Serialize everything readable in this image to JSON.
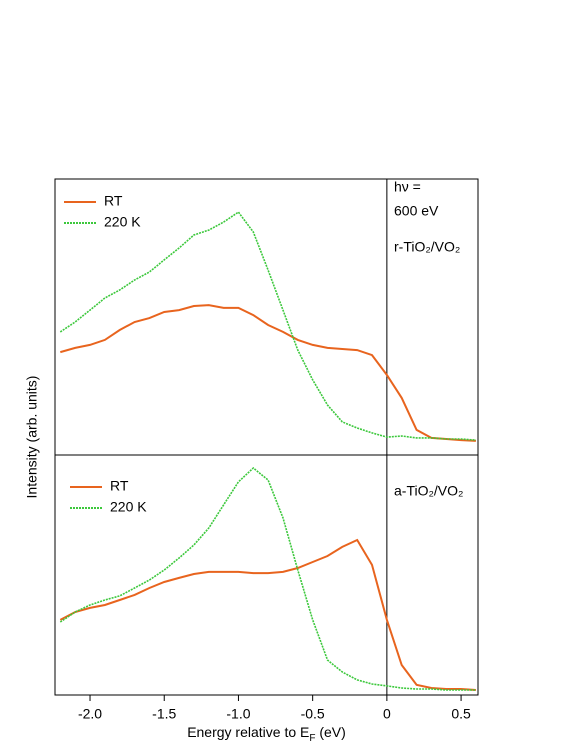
{
  "chart_data": [
    {
      "type": "line",
      "ylabel": "Intensity (arb. units)",
      "legend": "upper left",
      "annotations": [
        "hν =",
        "600 eV",
        "r-TiO₂/VO₂"
      ],
      "vline": 0,
      "xlim": [
        -2.236,
        0.614
      ],
      "ylim": [
        0,
        100
      ],
      "x": [
        -2.2,
        -2.1,
        -2.0,
        -1.9,
        -1.8,
        -1.7,
        -1.6,
        -1.5,
        -1.4,
        -1.3,
        -1.2,
        -1.1,
        -1.0,
        -0.9,
        -0.8,
        -0.7,
        -0.6,
        -0.5,
        -0.4,
        -0.3,
        -0.2,
        -0.1,
        0,
        0.1,
        0.2,
        0.3,
        0.4,
        0.5,
        0.6
      ],
      "series": [
        {
          "name": "RT",
          "color": "#e8641e",
          "dashed": false,
          "values": [
            37.3,
            38.8,
            39.9,
            41.7,
            45.3,
            48.2,
            49.6,
            51.8,
            52.5,
            54.0,
            54.3,
            53.3,
            53.3,
            50.7,
            47.1,
            44.6,
            41.7,
            39.9,
            38.8,
            38.4,
            38.0,
            36.2,
            29.0,
            20.7,
            9.1,
            6.2,
            5.8,
            5.4,
            5.1
          ]
        },
        {
          "name": "220 K",
          "color": "#3cc83c",
          "dashed": true,
          "values": [
            44.6,
            48.2,
            52.5,
            56.9,
            59.8,
            63.4,
            66.3,
            70.7,
            75.0,
            79.7,
            81.5,
            84.4,
            88.0,
            80.8,
            67.0,
            52.5,
            38.0,
            27.2,
            18.1,
            12.0,
            9.8,
            8.0,
            6.5,
            6.9,
            6.2,
            6.2,
            5.8,
            5.8,
            5.4
          ]
        }
      ]
    },
    {
      "type": "line",
      "legend": "upper left",
      "annotations": [
        "a-TiO₂/VO₂"
      ],
      "vline": 0,
      "xlabel": [
        "Energy relative to E",
        "F",
        " (eV)"
      ],
      "xlim": [
        -2.236,
        0.614
      ],
      "ylim": [
        0,
        100
      ],
      "xticks": [
        {
          "value": -2.0,
          "label": "-2.0"
        },
        {
          "value": -1.5,
          "label": "-1.5"
        },
        {
          "value": -1.0,
          "label": "-1.0"
        },
        {
          "value": -0.5,
          "label": "-0.5"
        },
        0,
        0.5
      ],
      "x": [
        -2.2,
        -2.1,
        -2.0,
        -1.9,
        -1.8,
        -1.7,
        -1.6,
        -1.5,
        -1.4,
        -1.3,
        -1.2,
        -1.1,
        -1.0,
        -0.9,
        -0.8,
        -0.7,
        -0.6,
        -0.5,
        -0.4,
        -0.3,
        -0.2,
        -0.1,
        0,
        0.1,
        0.2,
        0.3,
        0.4,
        0.5,
        0.6
      ],
      "series": [
        {
          "name": "RT",
          "color": "#e8641e",
          "dashed": false,
          "values": [
            31.3,
            34.6,
            36.3,
            37.5,
            39.6,
            41.7,
            44.6,
            47.1,
            48.8,
            50.4,
            51.3,
            51.3,
            51.3,
            50.8,
            50.8,
            51.3,
            52.9,
            55.4,
            57.9,
            61.7,
            64.6,
            54.2,
            31.3,
            12.5,
            4.2,
            2.9,
            2.5,
            2.5,
            2.1
          ]
        },
        {
          "name": "220 K",
          "color": "#3cc83c",
          "dashed": true,
          "values": [
            30.4,
            34.6,
            37.5,
            39.6,
            41.3,
            44.6,
            47.9,
            52.1,
            57.1,
            62.5,
            69.6,
            79.2,
            88.8,
            94.6,
            89.6,
            73.8,
            52.1,
            31.3,
            14.6,
            9.6,
            6.3,
            4.6,
            3.8,
            2.9,
            2.5,
            2.5,
            2.1,
            2.1,
            2.1
          ]
        }
      ]
    }
  ]
}
